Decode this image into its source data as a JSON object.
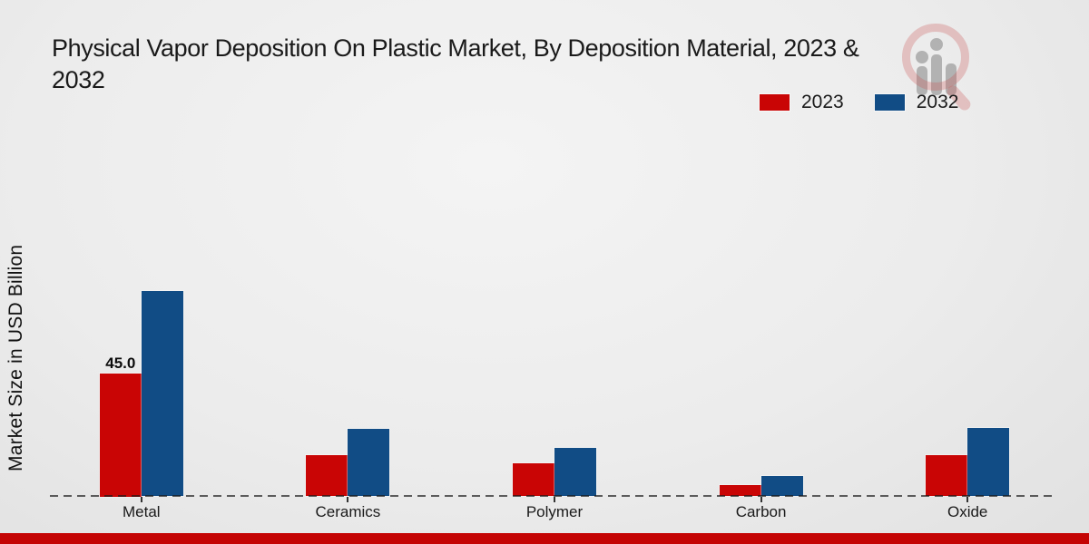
{
  "title": {
    "full": "Physical Vapor Deposition On Plastic Market, By Deposition Material, 2023 & 2032",
    "line1": "Physical Vapor Deposition On Plastic Market, By Deposition Material, 2023 &",
    "line2": "2032"
  },
  "legend": {
    "items": [
      {
        "label": "2023",
        "color": "#C90505"
      },
      {
        "label": "2032",
        "color": "#114C85"
      }
    ]
  },
  "y_axis": {
    "label": "Market Size in USD Billion"
  },
  "chart_data": {
    "type": "bar",
    "title": "Physical Vapor Deposition On Plastic Market, By Deposition Material, 2023 & 2032",
    "ylabel": "Market Size in USD Billion",
    "categories": [
      "Metal",
      "Ceramics",
      "Polymer",
      "Carbon",
      "Oxide"
    ],
    "series": [
      {
        "name": "2023",
        "color": "#C90505",
        "values": [
          45.0,
          14.9,
          12.1,
          4.0,
          15.0
        ]
      },
      {
        "name": "2032",
        "color": "#114C85",
        "values": [
          75.0,
          24.7,
          17.7,
          7.4,
          25.1
        ]
      }
    ],
    "annotations": [
      {
        "category": "Metal",
        "series": "2023",
        "text": "45.0"
      }
    ],
    "baseline_style": "dashed",
    "grid": false,
    "legend_position": "top-right",
    "ylim": [
      0,
      80
    ]
  },
  "watermark": {
    "icon": "magnifier-people-logo"
  },
  "footer": {
    "color": "#C40404"
  }
}
